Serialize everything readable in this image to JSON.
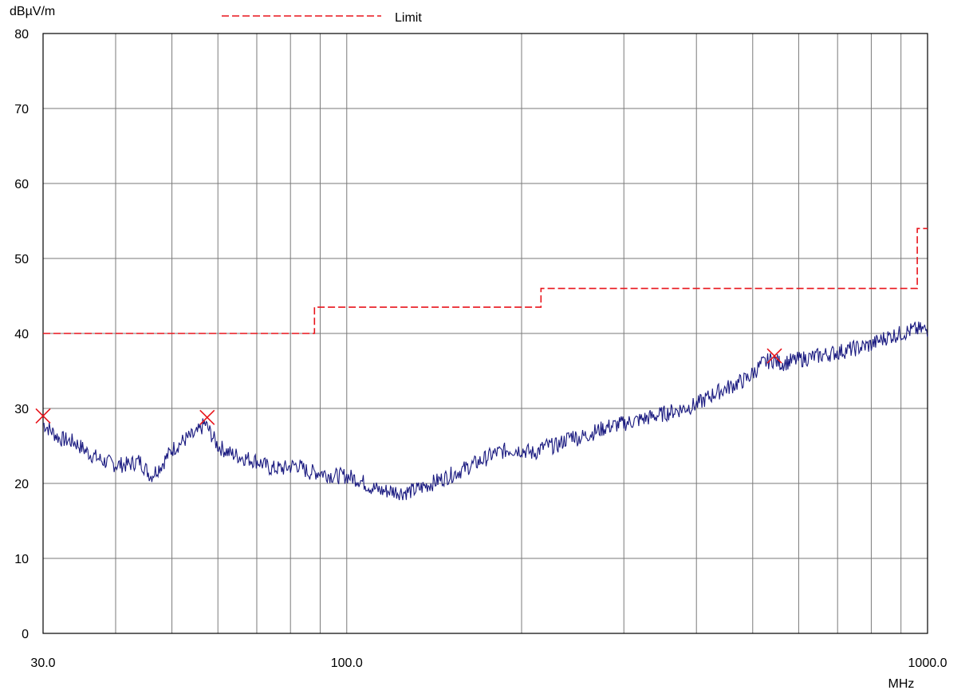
{
  "chart_data": {
    "type": "line",
    "ylabel": "dBµV/m",
    "xlabel": "MHz",
    "x_scale": "log",
    "xlim": [
      30,
      1000
    ],
    "ylim": [
      0,
      80
    ],
    "grid": true,
    "legend_position": "top-center",
    "x_tick_labels": [
      "30.0",
      "100.0",
      "1000.0"
    ],
    "y_tick_labels": [
      "0",
      "10",
      "20",
      "30",
      "40",
      "50",
      "60",
      "70",
      "80"
    ],
    "series": [
      {
        "name": "Limit",
        "color": "#e8141b",
        "style": "dashed",
        "x": [
          30,
          88,
          88,
          216,
          216,
          960,
          960,
          1000
        ],
        "y": [
          40,
          40,
          43.5,
          43.5,
          46,
          46,
          54,
          54
        ]
      },
      {
        "name": "",
        "color": "#1a1a80",
        "style": "solid",
        "x": [
          30,
          32,
          34,
          36,
          38,
          40,
          42,
          44,
          46,
          48,
          50,
          53,
          55,
          57,
          60,
          63,
          66,
          70,
          74,
          78,
          82,
          86,
          90,
          95,
          100,
          105,
          110,
          115,
          120,
          125,
          130,
          135,
          140,
          150,
          160,
          170,
          180,
          190,
          200,
          210,
          220,
          230,
          240,
          245,
          250,
          260,
          280,
          300,
          320,
          340,
          360,
          380,
          400,
          430,
          460,
          490,
          520,
          540,
          560,
          600,
          650,
          700,
          750,
          800,
          850,
          900,
          950,
          1000
        ],
        "y": [
          28,
          26,
          25.5,
          24,
          23,
          22.5,
          22.5,
          23,
          21,
          22.5,
          24.5,
          26,
          26.5,
          28,
          25,
          24,
          23.5,
          23,
          22,
          22,
          22.5,
          21.5,
          21.5,
          21,
          21,
          20.5,
          19.5,
          19,
          19,
          18.8,
          19,
          19.5,
          20,
          21,
          22,
          23,
          24,
          24.5,
          24.5,
          24,
          25,
          25,
          26,
          26.5,
          26,
          26.5,
          27.5,
          28,
          28.5,
          29,
          29.5,
          30,
          30.5,
          32,
          33,
          34,
          36,
          36.5,
          36,
          36.5,
          37,
          37.5,
          38,
          38.5,
          39.5,
          40,
          40.5,
          40.5
        ]
      }
    ],
    "markers": [
      {
        "x": 30,
        "y": 29,
        "symbol": "x",
        "color": "#e8141b"
      },
      {
        "x": 57.5,
        "y": 28.8,
        "symbol": "x",
        "color": "#e8141b"
      },
      {
        "x": 545,
        "y": 37,
        "symbol": "x",
        "color": "#e8141b"
      }
    ]
  }
}
